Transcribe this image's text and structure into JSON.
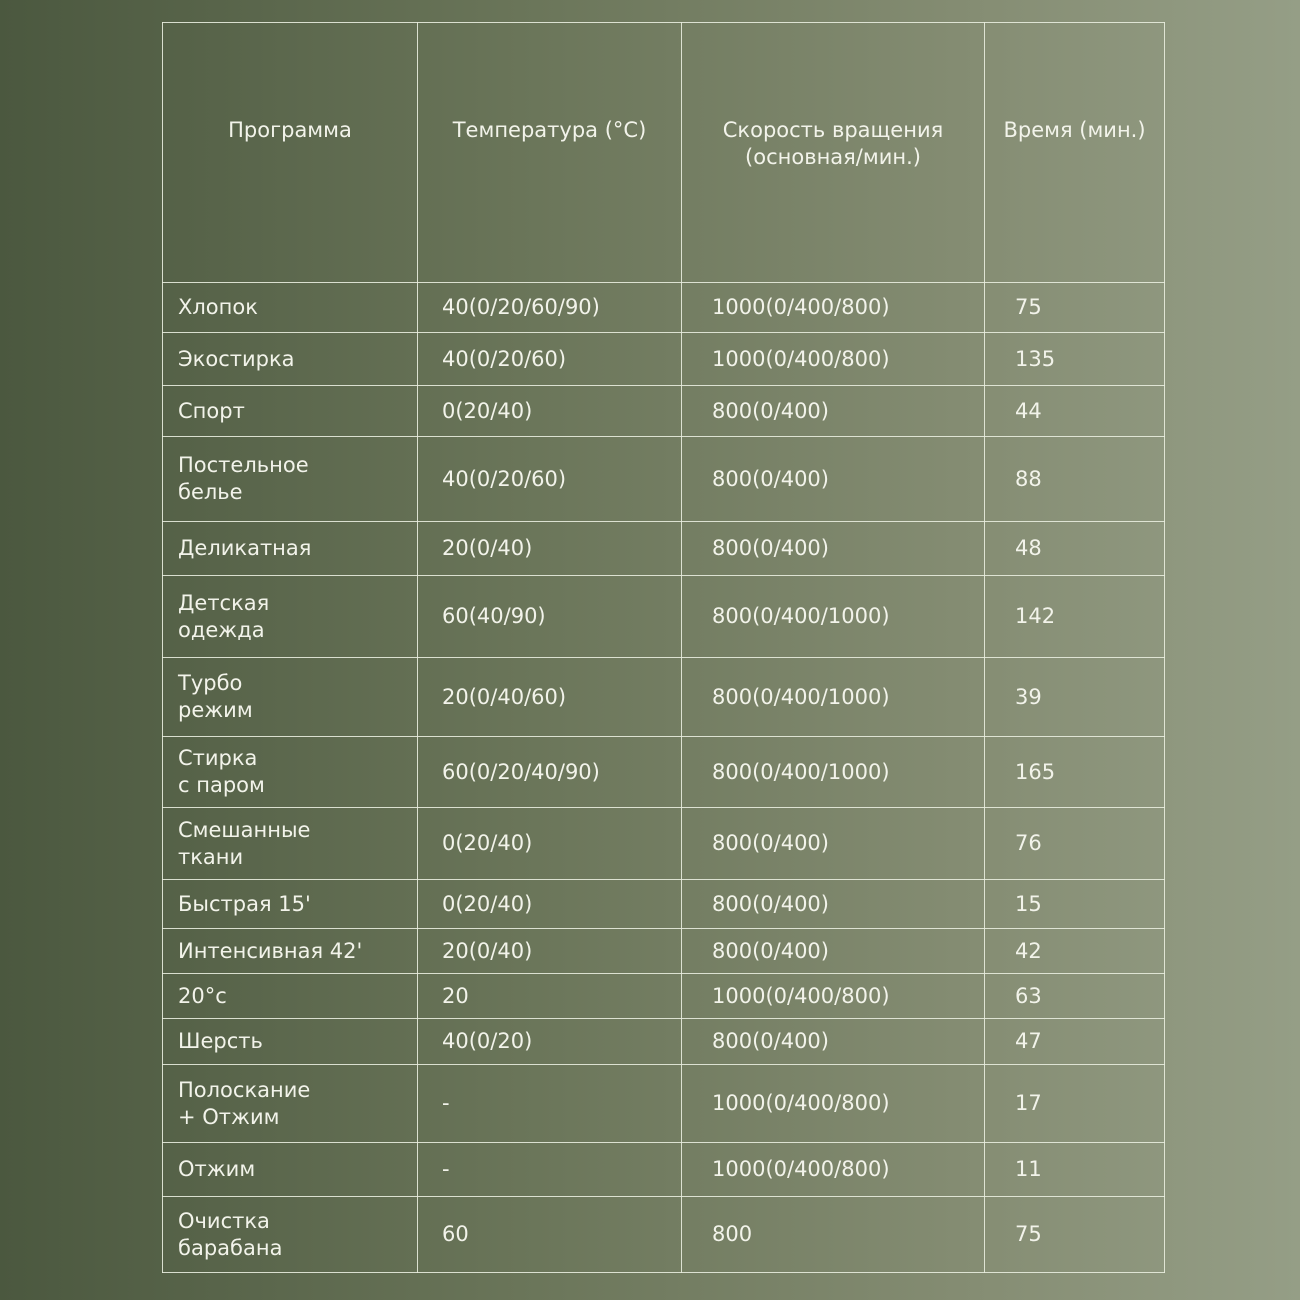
{
  "table": {
    "headers": [
      "Программа",
      "Температура (°C)",
      "Скорость вращения (основная/мин.)",
      "Время (мин.)"
    ],
    "rows": [
      [
        "Хлопок",
        "40(0/20/60/90)",
        "1000(0/400/800)",
        "75"
      ],
      [
        "Экостирка",
        "40(0/20/60)",
        "1000(0/400/800)",
        "135"
      ],
      [
        "Спорт",
        "0(20/40)",
        "800(0/400)",
        "44"
      ],
      [
        "Постельное белье",
        "40(0/20/60)",
        "800(0/400)",
        "88"
      ],
      [
        "Деликатная",
        "20(0/40)",
        "800(0/400)",
        "48"
      ],
      [
        "Детская одежда",
        "60(40/90)",
        "800(0/400/1000)",
        "142"
      ],
      [
        "Турбо режим",
        "20(0/40/60)",
        "800(0/400/1000)",
        "39"
      ],
      [
        "Стирка с паром",
        "60(0/20/40/90)",
        "800(0/400/1000)",
        "165"
      ],
      [
        "Смешанные ткани",
        "0(20/40)",
        "800(0/400)",
        "76"
      ],
      [
        "Быстрая 15'",
        "0(20/40)",
        "800(0/400)",
        "15"
      ],
      [
        "Интенсивная 42'",
        "20(0/40)",
        "800(0/400)",
        "42"
      ],
      [
        "20°с",
        "20",
        "1000(0/400/800)",
        "63"
      ],
      [
        "Шерсть",
        "40(0/20)",
        "800(0/400)",
        "47"
      ],
      [
        "Полоскание + Отжим",
        "-",
        "1000(0/400/800)",
        "17"
      ],
      [
        "Отжим",
        "-",
        "1000(0/400/800)",
        "11"
      ],
      [
        "Очистка барабана",
        "60",
        "800",
        "75"
      ]
    ]
  }
}
